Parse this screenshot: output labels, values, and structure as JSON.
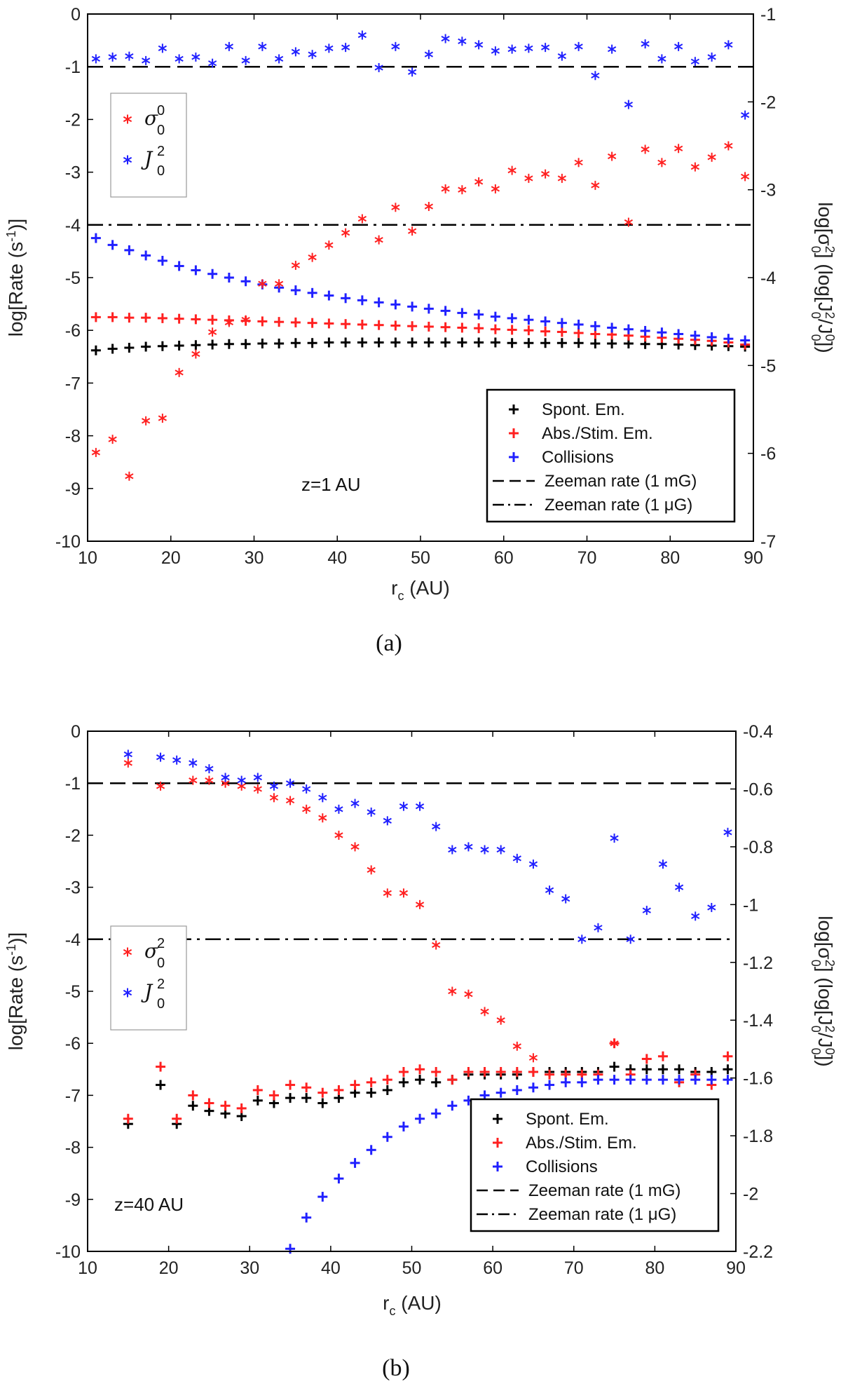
{
  "captions": [
    "(a)",
    "(b)"
  ],
  "chart_data": [
    {
      "type": "scatter",
      "panel": "(a)",
      "annotation": "z=1 AU",
      "xlabel": "r_c (AU)",
      "ylabel_left": "log[Rate (s⁻¹)]",
      "ylabel_right": "log[σ²₀] (log[J²₀/J⁰₀])",
      "xlim": [
        10,
        90
      ],
      "ylim_left": [
        -10,
        0
      ],
      "ylim_right": [
        -7,
        -1
      ],
      "xticks": [
        "10",
        "20",
        "30",
        "40",
        "50",
        "60",
        "70",
        "80",
        "90"
      ],
      "yticks_left": [
        "0",
        "-1",
        "-2",
        "-3",
        "-4",
        "-5",
        "-6",
        "-7",
        "-8",
        "-9",
        "-10"
      ],
      "yticks_right": [
        "-1",
        "-2",
        "-3",
        "-4",
        "-5",
        "-6",
        "-7"
      ],
      "hlines": [
        {
          "name": "Zeeman rate (1 mG)",
          "y": -1,
          "style": "dashed"
        },
        {
          "name": "Zeeman rate (1 μG)",
          "y": -4,
          "style": "dashdot"
        }
      ],
      "legend_left": [
        {
          "symbol": "σ",
          "sup": "0",
          "sub": "0",
          "color": "#ff2020"
        },
        {
          "symbol": "J",
          "sup": "2",
          "sub": "0",
          "color": "#2020ff"
        }
      ],
      "legend_right": [
        {
          "label": "Spont. Em.",
          "color": "#000000",
          "marker": "+"
        },
        {
          "label": "Abs./Stim. Em.",
          "color": "#ff2020",
          "marker": "+"
        },
        {
          "label": "Collisions",
          "color": "#2020ff",
          "marker": "+"
        },
        {
          "label": "Zeeman rate (1 mG)",
          "color": "#000000",
          "marker": "dashed"
        },
        {
          "label": "Zeeman rate (1 μG)",
          "color": "#000000",
          "marker": "dashdot"
        }
      ],
      "x": [
        11,
        13,
        15,
        17,
        19,
        21,
        23,
        25,
        27,
        29,
        31,
        33,
        35,
        37,
        39,
        41,
        43,
        45,
        47,
        49,
        51,
        53,
        55,
        57,
        59,
        61,
        63,
        65,
        67,
        69,
        71,
        73,
        75,
        77,
        79,
        81,
        83,
        85,
        87,
        89
      ],
      "series": [
        {
          "name": "Spont. Em.",
          "axis": "left",
          "marker": "+",
          "color": "#000000",
          "values": [
            -6.38,
            -6.35,
            -6.33,
            -6.31,
            -6.3,
            -6.29,
            -6.28,
            -6.27,
            -6.26,
            -6.26,
            -6.25,
            -6.25,
            -6.24,
            -6.24,
            -6.23,
            -6.23,
            -6.23,
            -6.23,
            -6.23,
            -6.23,
            -6.23,
            -6.23,
            -6.23,
            -6.23,
            -6.23,
            -6.24,
            -6.24,
            -6.24,
            -6.24,
            -6.24,
            -6.25,
            -6.25,
            -6.25,
            -6.26,
            -6.26,
            -6.27,
            -6.28,
            -6.29,
            -6.3,
            -6.31
          ]
        },
        {
          "name": "Abs./Stim. Em.",
          "axis": "left",
          "marker": "+",
          "color": "#ff2020",
          "values": [
            -5.75,
            -5.75,
            -5.76,
            -5.76,
            -5.77,
            -5.78,
            -5.79,
            -5.8,
            -5.81,
            -5.82,
            -5.83,
            -5.84,
            -5.85,
            -5.86,
            -5.87,
            -5.88,
            -5.89,
            -5.9,
            -5.91,
            -5.92,
            -5.93,
            -5.94,
            -5.95,
            -5.96,
            -5.98,
            -5.99,
            -6.0,
            -6.02,
            -6.03,
            -6.05,
            -6.07,
            -6.08,
            -6.1,
            -6.12,
            -6.14,
            -6.16,
            -6.18,
            -6.2,
            -6.23,
            -6.27
          ]
        },
        {
          "name": "Collisions",
          "axis": "left",
          "marker": "+",
          "color": "#2020ff",
          "values": [
            -4.25,
            -4.38,
            -4.48,
            -4.58,
            -4.68,
            -4.78,
            -4.86,
            -4.93,
            -5.0,
            -5.07,
            -5.13,
            -5.19,
            -5.24,
            -5.29,
            -5.34,
            -5.39,
            -5.43,
            -5.47,
            -5.51,
            -5.55,
            -5.59,
            -5.63,
            -5.67,
            -5.7,
            -5.74,
            -5.77,
            -5.8,
            -5.83,
            -5.86,
            -5.89,
            -5.92,
            -5.95,
            -5.98,
            -6.01,
            -6.04,
            -6.07,
            -6.1,
            -6.13,
            -6.16,
            -6.19
          ]
        },
        {
          "name": "σ⁰₀",
          "axis": "right",
          "marker": "*",
          "color": "#ff2020",
          "values": [
            -5.99,
            -5.84,
            -6.26,
            -5.63,
            -5.6,
            -5.08,
            -4.87,
            -4.62,
            -4.51,
            -4.48,
            -4.07,
            -4.07,
            -3.86,
            -3.77,
            -3.63,
            -3.49,
            -3.33,
            -3.57,
            -3.2,
            -3.47,
            -3.19,
            -2.99,
            -3.0,
            -2.91,
            -2.99,
            -2.78,
            -2.87,
            -2.82,
            -2.87,
            -2.69,
            -2.95,
            -2.62,
            -3.37,
            -2.54,
            -2.69,
            -2.53,
            -2.74,
            -2.63,
            -2.5,
            -2.85
          ]
        },
        {
          "name": "J²₀",
          "axis": "right",
          "marker": "*",
          "color": "#2020ff",
          "values": [
            -1.51,
            -1.49,
            -1.48,
            -1.53,
            -1.39,
            -1.51,
            -1.49,
            -1.56,
            -1.37,
            -1.53,
            -1.37,
            -1.51,
            -1.43,
            -1.46,
            -1.39,
            -1.38,
            -1.24,
            -1.61,
            -1.37,
            -1.66,
            -1.46,
            -1.28,
            -1.31,
            -1.35,
            -1.42,
            -1.4,
            -1.39,
            -1.38,
            -1.48,
            -1.37,
            -1.7,
            -1.4,
            -2.03,
            -1.34,
            -1.51,
            -1.37,
            -1.54,
            -1.49,
            -1.35,
            -2.15
          ]
        }
      ]
    },
    {
      "type": "scatter",
      "panel": "(b)",
      "annotation": "z=40 AU",
      "xlabel": "r_c (AU)",
      "ylabel_left": "log[Rate (s⁻¹)]",
      "ylabel_right": "log[σ²₀] (log[J²₀/J⁰₀])",
      "xlim": [
        10,
        90
      ],
      "ylim_left": [
        -10,
        0
      ],
      "ylim_right": [
        -2.2,
        -0.4
      ],
      "xticks": [
        "10",
        "20",
        "30",
        "40",
        "50",
        "60",
        "70",
        "80",
        "90"
      ],
      "yticks_left": [
        "0",
        "-1",
        "-2",
        "-3",
        "-4",
        "-5",
        "-6",
        "-7",
        "-8",
        "-9",
        "-10"
      ],
      "yticks_right": [
        "-0.4",
        "-0.6",
        "-0.8",
        "-1",
        "-1.2",
        "-1.4",
        "-1.6",
        "-1.8",
        "-2",
        "-2.2"
      ],
      "hlines": [
        {
          "name": "Zeeman rate (1 mG)",
          "y": -1,
          "style": "dashed"
        },
        {
          "name": "Zeeman rate (1 μG)",
          "y": -4,
          "style": "dashdot"
        }
      ],
      "legend_left": [
        {
          "symbol": "σ",
          "sup": "2",
          "sub": "0",
          "color": "#ff2020"
        },
        {
          "symbol": "J",
          "sup": "2",
          "sub": "0",
          "color": "#2020ff"
        }
      ],
      "legend_right": [
        {
          "label": "Spont. Em.",
          "color": "#000000",
          "marker": "+"
        },
        {
          "label": "Abs./Stim. Em.",
          "color": "#ff2020",
          "marker": "+"
        },
        {
          "label": "Collisions",
          "color": "#2020ff",
          "marker": "+"
        },
        {
          "label": "Zeeman rate (1 mG)",
          "color": "#000000",
          "marker": "dashed"
        },
        {
          "label": "Zeeman rate (1 μG)",
          "color": "#000000",
          "marker": "dashdot"
        }
      ],
      "x": [
        15,
        19,
        21,
        23,
        25,
        27,
        29,
        31,
        33,
        35,
        37,
        39,
        41,
        43,
        45,
        47,
        49,
        51,
        53,
        55,
        57,
        59,
        61,
        63,
        65,
        67,
        69,
        71,
        73,
        75,
        77,
        79,
        81,
        83,
        85,
        87,
        89
      ],
      "series": [
        {
          "name": "Spont. Em.",
          "axis": "left",
          "marker": "+",
          "color": "#000000",
          "values": [
            -7.55,
            -6.8,
            -7.55,
            -7.2,
            -7.3,
            -7.35,
            -7.4,
            -7.1,
            -7.15,
            -7.05,
            -7.05,
            -7.15,
            -7.05,
            -6.95,
            -6.95,
            -6.9,
            -6.75,
            -6.7,
            -6.75,
            -6.7,
            -6.6,
            -6.6,
            -6.6,
            -6.6,
            -6.55,
            -6.55,
            -6.55,
            -6.55,
            -6.55,
            -6.45,
            -6.5,
            -6.5,
            -6.5,
            -6.5,
            -6.55,
            -6.55,
            -6.5
          ]
        },
        {
          "name": "Abs./Stim. Em.",
          "axis": "left",
          "marker": "+",
          "color": "#ff2020",
          "values": [
            -7.45,
            -6.45,
            -7.45,
            -7.0,
            -7.15,
            -7.2,
            -7.25,
            -6.9,
            -7.0,
            -6.8,
            -6.85,
            -6.95,
            -6.9,
            -6.8,
            -6.75,
            -6.7,
            -6.55,
            -6.5,
            -6.55,
            -6.7,
            -6.55,
            -6.55,
            -6.55,
            -6.55,
            -6.55,
            -6.6,
            -6.6,
            -6.6,
            -6.6,
            -6.0,
            -6.6,
            -6.3,
            -6.25,
            -6.75,
            -6.6,
            -6.8,
            -6.25
          ]
        },
        {
          "name": "Collisions",
          "axis": "left",
          "marker": "+",
          "color": "#2020ff",
          "values": [
            null,
            null,
            null,
            null,
            null,
            null,
            null,
            null,
            null,
            -9.95,
            -9.35,
            -8.95,
            -8.6,
            -8.3,
            -8.05,
            -7.8,
            -7.6,
            -7.45,
            -7.35,
            -7.2,
            -7.1,
            -7.0,
            -6.95,
            -6.9,
            -6.85,
            -6.8,
            -6.75,
            -6.75,
            -6.7,
            -6.7,
            -6.7,
            -6.7,
            -6.7,
            -6.7,
            -6.7,
            -6.7,
            -6.7
          ]
        },
        {
          "name": "σ²₀",
          "axis": "right",
          "marker": "*",
          "color": "#ff2020",
          "values": [
            -0.51,
            -0.59,
            null,
            -0.57,
            -0.57,
            -0.58,
            -0.59,
            -0.6,
            -0.63,
            -0.64,
            -0.67,
            -0.7,
            -0.76,
            -0.8,
            -0.88,
            -0.96,
            -0.96,
            -1.0,
            -1.14,
            -1.3,
            -1.31,
            -1.37,
            -1.4,
            -1.49,
            -1.53,
            null,
            null,
            null,
            null,
            -1.48,
            null,
            null,
            null,
            null,
            null,
            null,
            null
          ]
        },
        {
          "name": "J²₀",
          "axis": "right",
          "marker": "*",
          "color": "#2020ff",
          "values": [
            -0.48,
            -0.49,
            -0.5,
            -0.51,
            -0.53,
            -0.56,
            -0.57,
            -0.56,
            -0.59,
            -0.58,
            -0.6,
            -0.63,
            -0.67,
            -0.65,
            -0.68,
            -0.71,
            -0.66,
            -0.66,
            -0.73,
            -0.81,
            -0.8,
            -0.81,
            -0.81,
            -0.84,
            -0.86,
            -0.95,
            -0.98,
            -1.12,
            -1.08,
            -0.77,
            -1.12,
            -1.02,
            -0.86,
            -0.94,
            -1.04,
            -1.01,
            -0.75
          ]
        }
      ]
    }
  ]
}
